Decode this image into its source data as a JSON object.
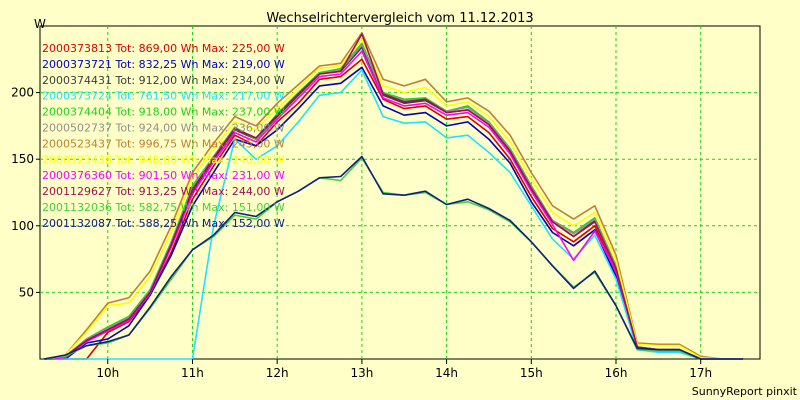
{
  "chart_data": {
    "type": "line",
    "title": "Wechselrichtervergleich vom 11.12.2013",
    "ylabel": "W",
    "xlabel": "",
    "footer": "SunnyReport pinxit",
    "xlim": [
      9.2,
      17.7
    ],
    "ylim": [
      0,
      250
    ],
    "xticks": [
      {
        "value": 10,
        "label": "10h"
      },
      {
        "value": 11,
        "label": "11h"
      },
      {
        "value": 12,
        "label": "12h"
      },
      {
        "value": 13,
        "label": "13h"
      },
      {
        "value": 14,
        "label": "14h"
      },
      {
        "value": 15,
        "label": "15h"
      },
      {
        "value": 16,
        "label": "16h"
      },
      {
        "value": 17,
        "label": "17h"
      }
    ],
    "yticks": [
      {
        "value": 50,
        "label": "50"
      },
      {
        "value": 100,
        "label": "100"
      },
      {
        "value": 150,
        "label": "150"
      },
      {
        "value": 200,
        "label": "200"
      }
    ],
    "grid": true,
    "x": [
      9.25,
      9.5,
      9.75,
      10.0,
      10.25,
      10.5,
      10.75,
      11.0,
      11.25,
      11.5,
      11.75,
      12.0,
      12.25,
      12.5,
      12.75,
      13.0,
      13.25,
      13.5,
      13.75,
      14.0,
      14.25,
      14.5,
      14.75,
      15.0,
      15.25,
      15.5,
      15.75,
      16.0,
      16.25,
      16.5,
      16.75,
      17.0,
      17.25,
      17.5
    ],
    "series": [
      {
        "name": "2000373813  Tot: 869,00 Wh Max: 225,00 W",
        "color": "#e00000",
        "values": [
          0,
          0,
          0,
          20,
          28,
          48,
          80,
          120,
          145,
          168,
          160,
          178,
          192,
          210,
          212,
          225,
          195,
          188,
          190,
          180,
          182,
          170,
          150,
          122,
          98,
          88,
          100,
          65,
          8,
          6,
          6,
          0,
          0,
          0
        ]
      },
      {
        "name": "2000373721  Tot: 832,25 Wh Max: 219,00 W",
        "color": "#0000c0",
        "values": [
          0,
          0,
          12,
          15,
          25,
          48,
          78,
          115,
          140,
          165,
          160,
          172,
          188,
          205,
          207,
          219,
          190,
          183,
          185,
          175,
          178,
          165,
          147,
          118,
          95,
          85,
          97,
          62,
          8,
          6,
          6,
          0,
          0,
          0
        ]
      },
      {
        "name": "2000374431  Tot: 912,00 Wh Max: 234,00 W",
        "color": "#404040",
        "values": [
          0,
          2,
          14,
          22,
          30,
          50,
          85,
          125,
          150,
          172,
          165,
          182,
          198,
          214,
          216,
          234,
          198,
          192,
          194,
          185,
          187,
          176,
          156,
          128,
          103,
          92,
          104,
          68,
          9,
          7,
          7,
          0,
          0,
          0
        ]
      },
      {
        "name": "2000373724  Tot: 761,50 Wh Max: 217,00 W",
        "color": "#20e0ff",
        "values": [
          0,
          0,
          0,
          0,
          0,
          0,
          0,
          0,
          100,
          165,
          150,
          160,
          178,
          198,
          200,
          217,
          182,
          177,
          178,
          166,
          168,
          155,
          140,
          115,
          90,
          75,
          93,
          60,
          7,
          5,
          5,
          0,
          0,
          0
        ]
      },
      {
        "name": "2000374404  Tot: 918,00 Wh Max: 237,00 W",
        "color": "#20d020",
        "values": [
          0,
          2,
          15,
          24,
          32,
          52,
          88,
          130,
          152,
          174,
          165,
          184,
          200,
          215,
          218,
          237,
          200,
          195,
          196,
          186,
          190,
          178,
          158,
          130,
          104,
          95,
          106,
          70,
          9,
          7,
          7,
          0,
          0,
          0
        ]
      },
      {
        "name": "2000502737  Tot: 924,00 Wh Max: 236,00 W",
        "color": "#909090",
        "values": [
          0,
          2,
          15,
          23,
          31,
          51,
          87,
          128,
          152,
          173,
          166,
          183,
          199,
          214,
          217,
          236,
          199,
          194,
          195,
          186,
          189,
          177,
          157,
          129,
          104,
          94,
          105,
          69,
          9,
          7,
          7,
          0,
          0,
          0
        ]
      },
      {
        "name": "2000523437  Tot: 996,75 Wh Max: 245,00 W",
        "color": "#c08030",
        "values": [
          0,
          3,
          22,
          42,
          46,
          66,
          100,
          140,
          162,
          182,
          175,
          192,
          206,
          220,
          222,
          245,
          210,
          205,
          210,
          193,
          196,
          186,
          168,
          140,
          115,
          105,
          115,
          78,
          12,
          11,
          11,
          2,
          0,
          0
        ]
      },
      {
        "name": "2000523438  Tot: 948,00 Wh Max: 240,00 W",
        "color": "#ffff00",
        "values": [
          0,
          3,
          20,
          40,
          42,
          62,
          95,
          136,
          158,
          178,
          172,
          188,
          203,
          218,
          220,
          240,
          205,
          200,
          204,
          190,
          193,
          182,
          163,
          135,
          110,
          100,
          110,
          74,
          11,
          10,
          10,
          1,
          0,
          0
        ]
      },
      {
        "name": "2000376360  Tot: 901,50 Wh Max: 231,00 W",
        "color": "#ff00ff",
        "values": [
          0,
          1,
          13,
          21,
          29,
          49,
          84,
          124,
          148,
          170,
          163,
          180,
          196,
          212,
          214,
          231,
          196,
          190,
          192,
          183,
          185,
          174,
          154,
          126,
          101,
          74,
          96,
          66,
          9,
          7,
          7,
          0,
          0,
          0
        ]
      },
      {
        "name": "2001129627  Tot: 913,25 Wh Max: 244,00 W",
        "color": "#a01050",
        "values": [
          0,
          2,
          14,
          22,
          30,
          50,
          86,
          127,
          151,
          173,
          166,
          183,
          199,
          214,
          216,
          244,
          199,
          193,
          195,
          185,
          187,
          176,
          156,
          128,
          103,
          92,
          103,
          68,
          9,
          7,
          7,
          0,
          0,
          0
        ]
      },
      {
        "name": "2001132036  Tot: 582,75 Wh Max: 151,00 W",
        "color": "#40d040",
        "values": [
          0,
          2,
          10,
          12,
          18,
          38,
          60,
          82,
          92,
          108,
          105,
          118,
          126,
          136,
          134,
          151,
          125,
          123,
          125,
          116,
          118,
          112,
          103,
          88,
          70,
          54,
          65,
          40,
          7,
          6,
          6,
          0,
          0,
          0
        ]
      },
      {
        "name": "2001132087  Tot: 588,25 Wh Max: 152,00 W",
        "color": "#102080",
        "values": [
          0,
          3,
          10,
          13,
          18,
          39,
          62,
          82,
          93,
          110,
          107,
          118,
          126,
          136,
          137,
          152,
          124,
          123,
          126,
          116,
          120,
          113,
          104,
          88,
          70,
          53,
          66,
          40,
          8,
          7,
          7,
          0,
          0,
          0
        ]
      }
    ]
  }
}
